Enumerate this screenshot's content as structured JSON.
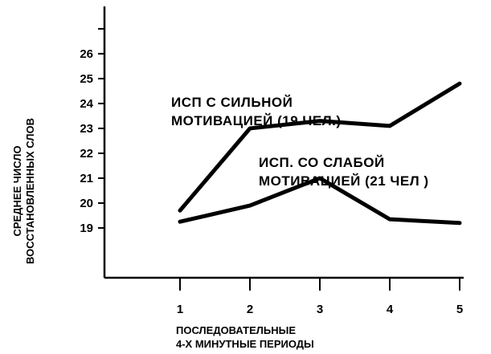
{
  "chart_data": {
    "type": "line",
    "ylabel_line1": "СРЕДНЕЕ ЧИСЛО",
    "ylabel_line2": "ВОССТАНОВЛЕННЫХ СЛОВ",
    "xlabel_line1": "ПОСЛЕДОВАТЕЛЬНЫЕ",
    "xlabel_line2": "4-Х МИНУТНЫЕ ПЕРИОДЫ",
    "x": [
      1,
      2,
      3,
      4,
      5
    ],
    "y_ticks": [
      19,
      20,
      21,
      22,
      23,
      24,
      25,
      26
    ],
    "ylim": [
      17.0,
      27.9
    ],
    "grid": false,
    "series": [
      {
        "name": "ИСП. С СИЛЬНОЙ МОТИВАЦИЕЙ (19 ЧЕЛ.)",
        "label_line1": "ИСП  С СИЛЬНОЙ",
        "label_line2": "МОТИВАЦИЕЙ (19 ЧЕЛ.)",
        "values": [
          19.7,
          23.0,
          23.3,
          23.1,
          24.8
        ]
      },
      {
        "name": "ИСП. СО СЛАБОЙ МОТИВАЦИЕЙ (21 ЧЕЛ )",
        "label_line1": "ИСП. СО СЛАБОЙ",
        "label_line2": "МОТИВАЦИЕЙ (21 ЧЕЛ )",
        "values": [
          19.25,
          19.9,
          21.0,
          19.35,
          19.2
        ]
      }
    ]
  }
}
